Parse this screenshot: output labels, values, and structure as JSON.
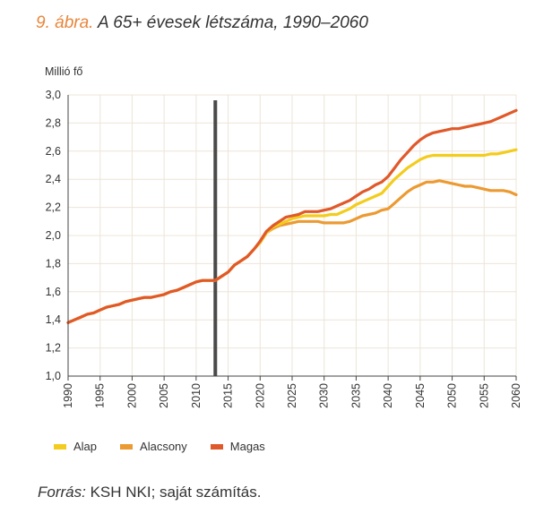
{
  "figure": {
    "number": "9. ábra.",
    "title": "A 65+ évesek létszáma, 1990–2060"
  },
  "source": {
    "label": "Forrás:",
    "text": "KSH NKI; saját számítás."
  },
  "colors": {
    "Alap": "#f3cc1d",
    "Alacsony": "#ec9a32",
    "Magas": "#e0592a",
    "grid": "#ede4d8",
    "axis": "#444444",
    "divider": "#4a4a4a",
    "title_number": "#e8863a"
  },
  "chart_data": {
    "type": "line",
    "title": "A 65+ évesek létszáma, 1990–2060",
    "xlabel": "",
    "ylabel": "Millió fő",
    "xlim": [
      1990,
      2060
    ],
    "ylim": [
      1.0,
      3.0
    ],
    "x_ticks": [
      1990,
      1995,
      2000,
      2005,
      2010,
      2015,
      2020,
      2025,
      2030,
      2035,
      2040,
      2045,
      2050,
      2055,
      2060
    ],
    "y_ticks": [
      "1,0",
      "1,2",
      "1,4",
      "1,6",
      "1,8",
      "2,0",
      "2,2",
      "2,4",
      "2,6",
      "2,8",
      "3,0"
    ],
    "y_tick_values": [
      1.0,
      1.2,
      1.4,
      1.6,
      1.8,
      2.0,
      2.2,
      2.4,
      2.6,
      2.8,
      3.0
    ],
    "grid": true,
    "legend_position": "bottom-left",
    "vertical_marker_x": 2013,
    "series": [
      {
        "name": "Alap",
        "x": [
          1990,
          1991,
          1992,
          1993,
          1994,
          1995,
          1996,
          1997,
          1998,
          1999,
          2000,
          2001,
          2002,
          2003,
          2004,
          2005,
          2006,
          2007,
          2008,
          2009,
          2010,
          2011,
          2012,
          2013,
          2014,
          2015,
          2016,
          2017,
          2018,
          2019,
          2020,
          2021,
          2022,
          2023,
          2024,
          2025,
          2026,
          2027,
          2028,
          2029,
          2030,
          2031,
          2032,
          2033,
          2034,
          2035,
          2036,
          2037,
          2038,
          2039,
          2040,
          2041,
          2042,
          2043,
          2044,
          2045,
          2046,
          2047,
          2048,
          2049,
          2050,
          2051,
          2052,
          2053,
          2054,
          2055,
          2056,
          2057,
          2058,
          2059,
          2060
        ],
        "y": [
          1.38,
          1.4,
          1.42,
          1.44,
          1.45,
          1.47,
          1.49,
          1.5,
          1.51,
          1.53,
          1.54,
          1.55,
          1.56,
          1.56,
          1.57,
          1.58,
          1.6,
          1.61,
          1.63,
          1.65,
          1.67,
          1.68,
          1.68,
          1.68,
          1.71,
          1.74,
          1.79,
          1.82,
          1.85,
          1.9,
          1.95,
          2.02,
          2.06,
          2.08,
          2.1,
          2.12,
          2.13,
          2.14,
          2.14,
          2.14,
          2.14,
          2.15,
          2.15,
          2.17,
          2.19,
          2.22,
          2.24,
          2.26,
          2.28,
          2.3,
          2.35,
          2.4,
          2.44,
          2.48,
          2.51,
          2.54,
          2.56,
          2.57,
          2.57,
          2.57,
          2.57,
          2.57,
          2.57,
          2.57,
          2.57,
          2.57,
          2.58,
          2.58,
          2.59,
          2.6,
          2.61
        ]
      },
      {
        "name": "Alacsony",
        "x": [
          1990,
          1991,
          1992,
          1993,
          1994,
          1995,
          1996,
          1997,
          1998,
          1999,
          2000,
          2001,
          2002,
          2003,
          2004,
          2005,
          2006,
          2007,
          2008,
          2009,
          2010,
          2011,
          2012,
          2013,
          2014,
          2015,
          2016,
          2017,
          2018,
          2019,
          2020,
          2021,
          2022,
          2023,
          2024,
          2025,
          2026,
          2027,
          2028,
          2029,
          2030,
          2031,
          2032,
          2033,
          2034,
          2035,
          2036,
          2037,
          2038,
          2039,
          2040,
          2041,
          2042,
          2043,
          2044,
          2045,
          2046,
          2047,
          2048,
          2049,
          2050,
          2051,
          2052,
          2053,
          2054,
          2055,
          2056,
          2057,
          2058,
          2059,
          2060
        ],
        "y": [
          1.38,
          1.4,
          1.42,
          1.44,
          1.45,
          1.47,
          1.49,
          1.5,
          1.51,
          1.53,
          1.54,
          1.55,
          1.56,
          1.56,
          1.57,
          1.58,
          1.6,
          1.61,
          1.63,
          1.65,
          1.67,
          1.68,
          1.68,
          1.68,
          1.71,
          1.74,
          1.79,
          1.82,
          1.85,
          1.9,
          1.95,
          2.02,
          2.05,
          2.07,
          2.08,
          2.09,
          2.1,
          2.1,
          2.1,
          2.1,
          2.09,
          2.09,
          2.09,
          2.09,
          2.1,
          2.12,
          2.14,
          2.15,
          2.16,
          2.18,
          2.19,
          2.23,
          2.27,
          2.31,
          2.34,
          2.36,
          2.38,
          2.38,
          2.39,
          2.38,
          2.37,
          2.36,
          2.35,
          2.35,
          2.34,
          2.33,
          2.32,
          2.32,
          2.32,
          2.31,
          2.29
        ]
      },
      {
        "name": "Magas",
        "x": [
          1990,
          1991,
          1992,
          1993,
          1994,
          1995,
          1996,
          1997,
          1998,
          1999,
          2000,
          2001,
          2002,
          2003,
          2004,
          2005,
          2006,
          2007,
          2008,
          2009,
          2010,
          2011,
          2012,
          2013,
          2014,
          2015,
          2016,
          2017,
          2018,
          2019,
          2020,
          2021,
          2022,
          2023,
          2024,
          2025,
          2026,
          2027,
          2028,
          2029,
          2030,
          2031,
          2032,
          2033,
          2034,
          2035,
          2036,
          2037,
          2038,
          2039,
          2040,
          2041,
          2042,
          2043,
          2044,
          2045,
          2046,
          2047,
          2048,
          2049,
          2050,
          2051,
          2052,
          2053,
          2054,
          2055,
          2056,
          2057,
          2058,
          2059,
          2060
        ],
        "y": [
          1.38,
          1.4,
          1.42,
          1.44,
          1.45,
          1.47,
          1.49,
          1.5,
          1.51,
          1.53,
          1.54,
          1.55,
          1.56,
          1.56,
          1.57,
          1.58,
          1.6,
          1.61,
          1.63,
          1.65,
          1.67,
          1.68,
          1.68,
          1.68,
          1.71,
          1.74,
          1.79,
          1.82,
          1.85,
          1.9,
          1.96,
          2.03,
          2.07,
          2.1,
          2.13,
          2.14,
          2.15,
          2.17,
          2.17,
          2.17,
          2.18,
          2.19,
          2.21,
          2.23,
          2.25,
          2.28,
          2.31,
          2.33,
          2.36,
          2.38,
          2.42,
          2.48,
          2.54,
          2.59,
          2.64,
          2.68,
          2.71,
          2.73,
          2.74,
          2.75,
          2.76,
          2.76,
          2.77,
          2.78,
          2.79,
          2.8,
          2.81,
          2.83,
          2.85,
          2.87,
          2.89
        ]
      }
    ]
  }
}
